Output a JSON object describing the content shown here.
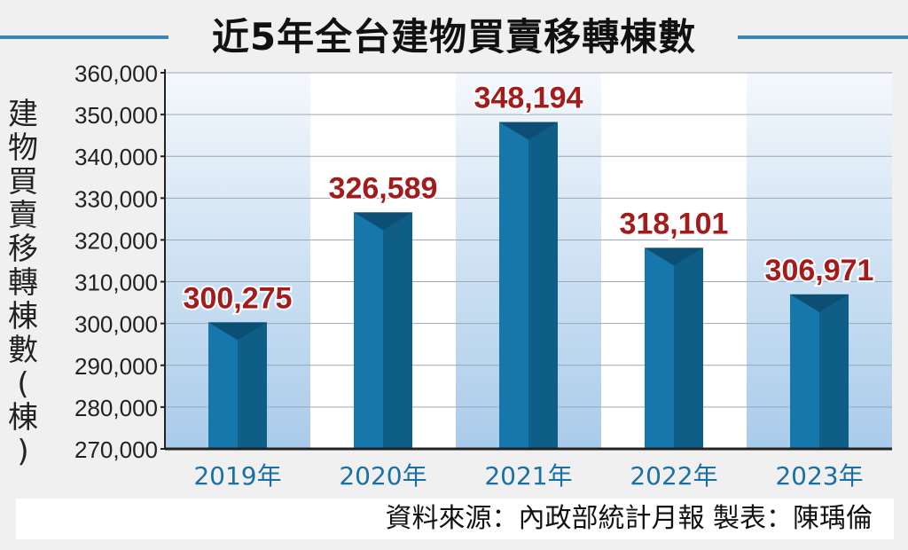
{
  "title": "近5年全台建物買賣移轉棟數",
  "source_note": "資料來源：內政部統計月報  製表：陳瑀倫",
  "colors": {
    "bar_face": "#1677aa",
    "bar_side": "#0f5e88",
    "bar_top": "#0d4f74",
    "value_label": "#a31c1c",
    "axis": "#222222",
    "category_label": "#1a6fa3",
    "title_rule": "#3b86b3"
  },
  "chart_data": {
    "type": "bar",
    "title": "近5年全台建物買賣移轉棟數",
    "xlabel": "",
    "ylabel": "建物買賣移轉棟數(棟)",
    "ylim": [
      270000,
      360000
    ],
    "yticks": [
      270000,
      280000,
      290000,
      300000,
      310000,
      320000,
      330000,
      340000,
      350000,
      360000
    ],
    "ytick_labels": [
      "270,000",
      "280,000",
      "290,000",
      "300,000",
      "310,000",
      "320,000",
      "330,000",
      "340,000",
      "350,000",
      "360,000"
    ],
    "categories": [
      "2019年",
      "2020年",
      "2021年",
      "2022年",
      "2023年"
    ],
    "values": [
      300275,
      326589,
      348194,
      318101,
      306971
    ],
    "value_labels": [
      "300,275",
      "326,589",
      "348,194",
      "318,101",
      "306,971"
    ],
    "grid": true
  }
}
